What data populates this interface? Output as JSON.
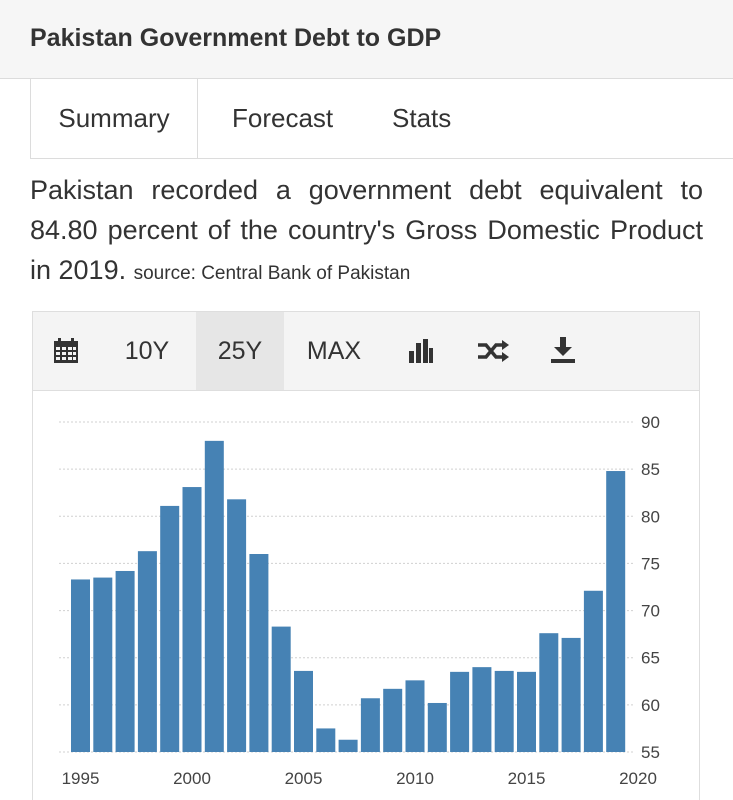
{
  "header": {
    "title": "Pakistan Government Debt to GDP"
  },
  "tabs": [
    {
      "label": "Summary"
    },
    {
      "label": "Forecast"
    },
    {
      "label": "Stats"
    }
  ],
  "summary": {
    "text": "Pakistan recorded a government debt equivalent to 84.80 percent of the country's Gross Domestic Product in 2019.",
    "source": "source: Central Bank of Pakistan"
  },
  "toolbar": {
    "range_10y": "10Y",
    "range_25y": "25Y",
    "range_max": "MAX",
    "icons": [
      "calendar-icon",
      "bar-chart-icon",
      "shuffle-icon",
      "download-icon"
    ]
  },
  "colors": {
    "bar": "#4682b4",
    "grid": "#d0d0d0"
  },
  "chart_data": {
    "type": "bar",
    "categories": [
      "1995",
      "1996",
      "1997",
      "1998",
      "1999",
      "2000",
      "2001",
      "2002",
      "2003",
      "2004",
      "2005",
      "2006",
      "2007",
      "2008",
      "2009",
      "2010",
      "2011",
      "2012",
      "2013",
      "2014",
      "2015",
      "2016",
      "2017",
      "2018",
      "2019"
    ],
    "values": [
      73.3,
      73.5,
      74.2,
      76.3,
      81.1,
      83.1,
      88.0,
      81.8,
      76.0,
      68.3,
      63.6,
      57.5,
      56.3,
      60.7,
      61.7,
      62.6,
      60.2,
      63.5,
      64.0,
      63.6,
      63.5,
      67.6,
      67.1,
      72.1,
      84.8
    ],
    "x_ticks": [
      "1995",
      "2000",
      "2005",
      "2010",
      "2015",
      "2020"
    ],
    "y_ticks": [
      "55",
      "60",
      "65",
      "70",
      "75",
      "80",
      "85",
      "90"
    ],
    "ylim": [
      55,
      90
    ],
    "grid": true,
    "y_axis_position": "right"
  }
}
